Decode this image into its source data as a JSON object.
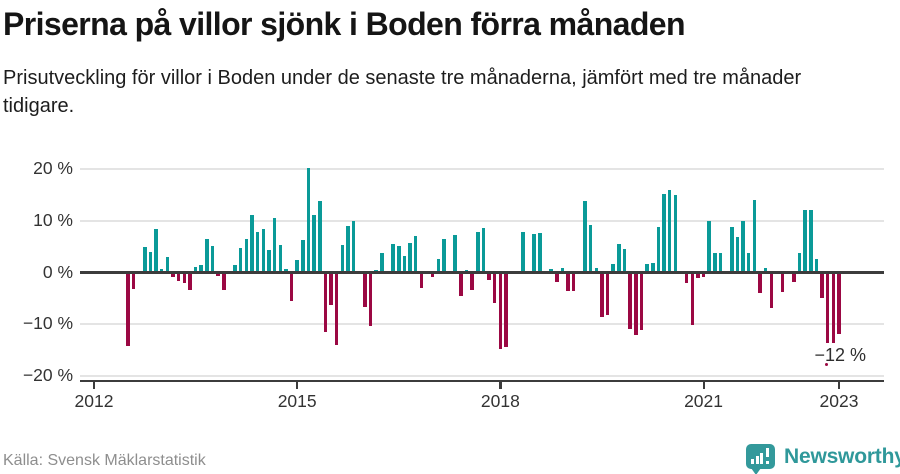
{
  "header": {
    "title": "Priserna på villor sjönk i Boden förra månaden",
    "subtitle": "Prisutveckling för villor i Boden under de senaste tre månaderna, jämfört med tre månader tidigare."
  },
  "chart": {
    "y_ticks": [
      "20 %",
      "10 %",
      "0 %",
      "−10 %",
      "−20 %"
    ],
    "x_ticks": [
      "2012",
      "2015",
      "2018",
      "2021",
      "2023"
    ],
    "annotation": "−12 %"
  },
  "chart_data": {
    "type": "bar",
    "title": "Priserna på villor sjönk i Boden förra månaden",
    "subtitle": "Prisutveckling för villor i Boden under de senaste tre månaderna, jämfört med tre månader tidigare.",
    "unit": "%",
    "x_freq": "monthly",
    "x_start": "2012-07",
    "x_end": "2023-01",
    "values": [
      -14.2,
      -3.1,
      0,
      4.9,
      3.9,
      8.4,
      0.6,
      3.1,
      -0.9,
      -1.6,
      -2.1,
      -3.4,
      1.1,
      1.4,
      6.4,
      5.1,
      -0.6,
      -3.4,
      0,
      1.5,
      4.7,
      6.5,
      11.1,
      7.9,
      8.4,
      4.4,
      10.6,
      5.3,
      0.6,
      -5.4,
      2.5,
      6.3,
      20.2,
      11.1,
      13.9,
      -11.5,
      -6.3,
      -13.9,
      5.4,
      9.0,
      10.0,
      0,
      -6.7,
      -10.4,
      0.5,
      3.7,
      0,
      5.6,
      5.2,
      3.2,
      5.8,
      7.0,
      -3.0,
      0,
      -0.9,
      2.7,
      6.4,
      0,
      7.2,
      -4.6,
      0.5,
      -3.3,
      7.8,
      8.6,
      -1.4,
      -5.8,
      -14.7,
      -14.4,
      0,
      0,
      7.8,
      0,
      7.5,
      7.7,
      0,
      0.6,
      -1.8,
      0.9,
      -3.5,
      -3.6,
      0,
      13.8,
      9.1,
      0.8,
      -8.6,
      -8.2,
      1.7,
      5.5,
      4.6,
      -10.9,
      -12.1,
      -11.1,
      1.7,
      1.8,
      8.8,
      15.2,
      16.0,
      15.0,
      0,
      -2.0,
      -10.1,
      -1.0,
      -0.8,
      10.0,
      3.7,
      3.7,
      0,
      8.8,
      6.8,
      9.9,
      3.8,
      14.1,
      -3.9,
      0.8,
      -6.8,
      0,
      -3.8,
      0,
      -1.9,
      3.8,
      12.1,
      12.1,
      2.7,
      -4.9,
      -13.5,
      -13.6,
      -11.9
    ],
    "ylim": [
      -20,
      20
    ],
    "y_tick_values": [
      20,
      10,
      0,
      -10,
      -20
    ],
    "x_tick_years": [
      2012,
      2015,
      2018,
      2021,
      2023
    ],
    "grid": "horizontal",
    "legend": "none",
    "colors": {
      "positive": "#0a9a98",
      "negative": "#9b0843"
    },
    "annotation": {
      "text": "−12 %",
      "value": -12,
      "x": "2023-01"
    }
  },
  "footer": {
    "source": "Källa: Svensk Mäklarstatistik",
    "brand": "Newsworthy"
  }
}
